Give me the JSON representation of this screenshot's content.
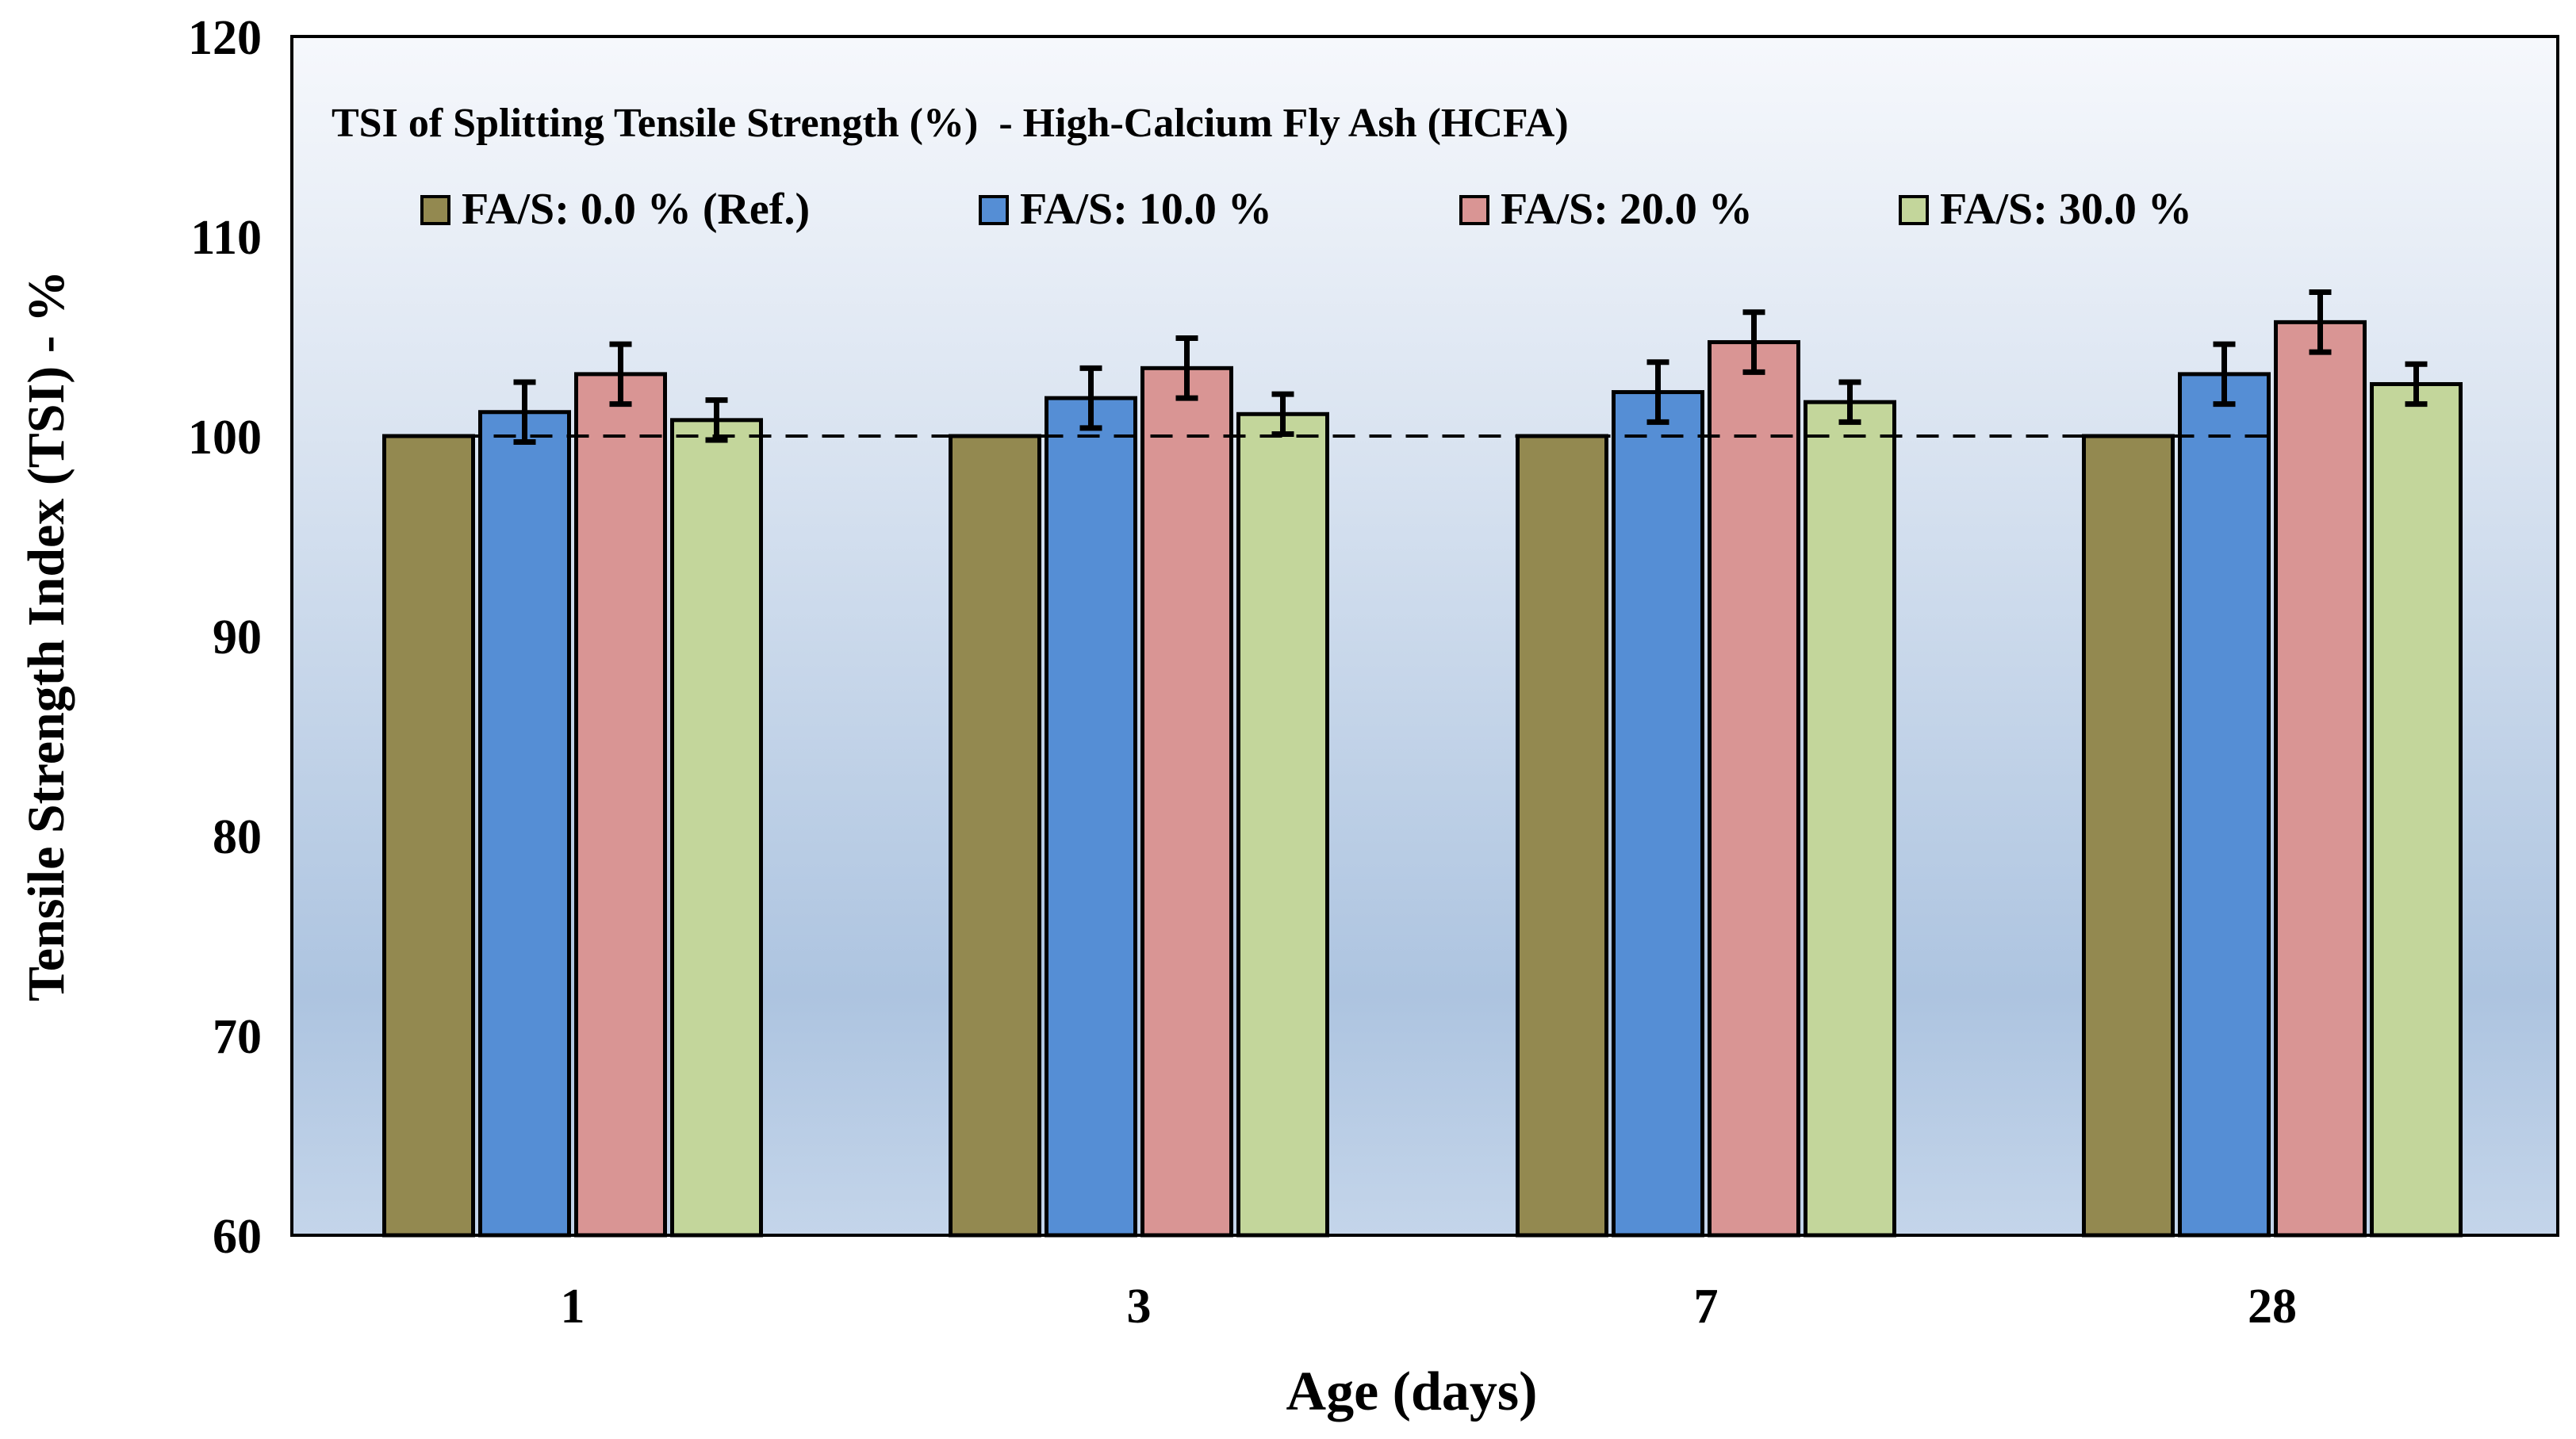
{
  "chart_data": {
    "type": "bar",
    "title": "TSI of Splitting Tensile Strength (%)  - High-Calcium Fly Ash (HCFA)",
    "xlabel": "Age (days)",
    "ylabel": "Tensile Strength Index (TSI) - %",
    "ylim": [
      60,
      120
    ],
    "yticks": [
      60,
      70,
      80,
      90,
      100,
      110,
      120
    ],
    "categories": [
      "1",
      "3",
      "7",
      "28"
    ],
    "reference_line": 100,
    "legend_placement": "top",
    "series": [
      {
        "name": "FA/S: 0.0 % (Ref.)",
        "color": "#938950",
        "values": [
          100,
          100,
          100,
          100
        ],
        "errors": [
          0,
          0,
          0,
          0
        ]
      },
      {
        "name": "FA/S: 10.0 %",
        "color": "#558ed5",
        "values": [
          101.2,
          101.9,
          102.2,
          103.1
        ],
        "errors": [
          1.5,
          1.5,
          1.5,
          1.5
        ]
      },
      {
        "name": "FA/S: 20.0 %",
        "color": "#d99594",
        "values": [
          103.1,
          103.4,
          104.7,
          105.7
        ],
        "errors": [
          1.5,
          1.5,
          1.5,
          1.5
        ]
      },
      {
        "name": "FA/S: 30.0 %",
        "color": "#c3d69b",
        "values": [
          100.8,
          101.1,
          101.7,
          102.6
        ],
        "errors": [
          1.0,
          1.0,
          1.0,
          1.0
        ]
      }
    ]
  }
}
